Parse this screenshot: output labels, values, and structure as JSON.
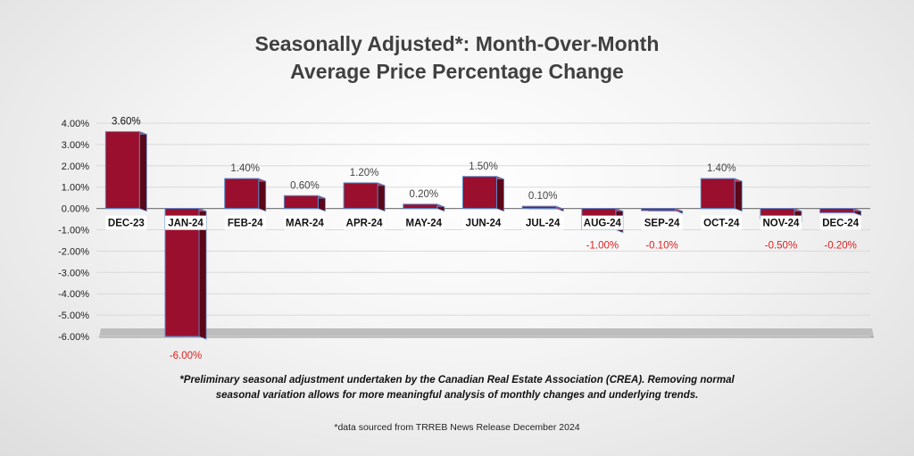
{
  "chart_data": {
    "type": "bar",
    "title_line1": "Seasonally Adjusted*:  Month-Over-Month",
    "title_line2": "Average Price Percentage Change",
    "categories": [
      "DEC-23",
      "JAN-24",
      "FEB-24",
      "MAR-24",
      "APR-24",
      "MAY-24",
      "JUN-24",
      "JUL-24",
      "AUG-24",
      "SEP-24",
      "OCT-24",
      "NOV-24",
      "DEC-24"
    ],
    "values": [
      3.6,
      -6.0,
      1.4,
      0.6,
      1.2,
      0.2,
      1.5,
      0.1,
      -1.0,
      -0.1,
      1.4,
      -0.5,
      -0.2
    ],
    "data_labels": [
      "3.60%",
      "-6.00%",
      "1.40%",
      "0.60%",
      "1.20%",
      "0.20%",
      "1.50%",
      "0.10%",
      "-1.00%",
      "-0.10%",
      "1.40%",
      "-0.50%",
      "-0.20%"
    ],
    "yticks": [
      "4.00%",
      "3.00%",
      "2.00%",
      "1.00%",
      "0.00%",
      "-1.00%",
      "-2.00%",
      "-3.00%",
      "-4.00%",
      "-5.00%",
      "-6.00%"
    ],
    "ylim": [
      -6,
      4
    ],
    "xlabel": "",
    "ylabel": "",
    "grid": true,
    "colors": {
      "bar_front": "#9a0f2e",
      "bar_side": "#5a0718",
      "bar_top": "#c13d5a",
      "bar_edge": "#5b86c6",
      "positive_label": "#444444",
      "negative_label": "#e02020",
      "grid": "#d9d9d9",
      "floor": "#bdbdbd"
    }
  },
  "footnote_line1": "*Preliminary seasonal adjustment undertaken by the Canadian Real Estate Association (CREA).  Removing normal",
  "footnote_line2": "seasonal variation allows for more meaningful analysis of monthly changes and underlying trends.",
  "source_note": "*data sourced from TRREB News Release December 2024"
}
